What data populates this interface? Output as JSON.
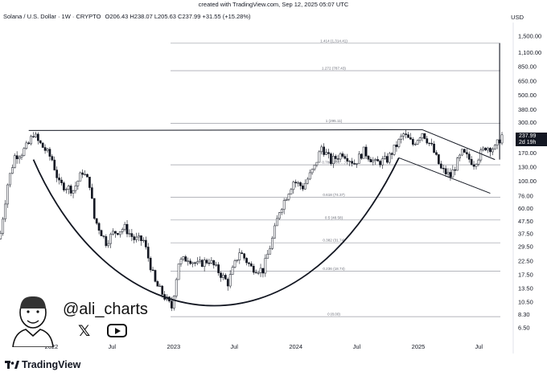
{
  "caption": "created with TradingView.com, Sep 12, 2025 05:07 UTC",
  "header": {
    "symbol": "Solana / U.S. Dollar · 1W · CRYPTO",
    "ohlc": "O206.43  H238.07  L205.63  C237.99  +31.55 (+15.28%)"
  },
  "currency": "USD",
  "watermark": {
    "handle": "@ali_charts",
    "x_icon": "x-logo-icon",
    "video_icon": "play-button-icon"
  },
  "brand": "TradingView",
  "price_tag": {
    "price": "237.99",
    "countdown": "2d 19h"
  },
  "colors": {
    "line": "#131722",
    "grid": "#9b9ea6",
    "candle_up": "#ffffff",
    "candle_down": "#131722"
  },
  "chart_data": {
    "type": "candlestick",
    "y_scale": "log",
    "y_axis_labels": [
      "1,500.00",
      "1,100.00",
      "850.00",
      "650.00",
      "500.00",
      "380.00",
      "300.00",
      "237.99",
      "170.00",
      "130.00",
      "100.00",
      "76.00",
      "60.00",
      "47.50",
      "37.50",
      "29.50",
      "22.50",
      "17.50",
      "13.50",
      "10.50",
      "8.30",
      "6.50"
    ],
    "y_ticks": [
      1500,
      1100,
      850,
      650,
      500,
      380,
      300,
      170,
      130,
      100,
      76,
      60,
      47.5,
      37.5,
      29.5,
      22.5,
      17.5,
      13.5,
      10.5,
      8.3,
      6.5
    ],
    "x_axis_labels": [
      {
        "label": "2022",
        "date": "2022-01-01"
      },
      {
        "label": "Jul",
        "date": "2022-07-01"
      },
      {
        "label": "2023",
        "date": "2023-01-01"
      },
      {
        "label": "Jul",
        "date": "2023-07-01"
      },
      {
        "label": "2024",
        "date": "2024-01-01"
      },
      {
        "label": "Jul",
        "date": "2024-07-01"
      },
      {
        "label": "2025",
        "date": "2025-01-01"
      },
      {
        "label": "Jul",
        "date": "2025-07-01"
      }
    ],
    "fib_levels": [
      {
        "label": "1.414 (1,314.41)",
        "price": 1314.41
      },
      {
        "label": "1.272 (787.43)",
        "price": 787.43
      },
      {
        "label": "1 (295.11)",
        "price": 295.11
      },
      {
        "label": "0.786 (136.…)",
        "price": 136
      },
      {
        "label": "0.618 (74.37)",
        "price": 74.37
      },
      {
        "label": "0.5 (48.58)",
        "price": 48.58
      },
      {
        "label": "0.382 (31.74)",
        "price": 31.74
      },
      {
        "label": "0.236 (18.74)",
        "price": 18.74
      },
      {
        "label": "0 (8.00)",
        "price": 8.0
      }
    ],
    "weekly_closes": [
      {
        "date": "2021-08-02",
        "close": 38
      },
      {
        "date": "2021-08-23",
        "close": 95
      },
      {
        "date": "2021-09-13",
        "close": 160
      },
      {
        "date": "2021-10-04",
        "close": 170
      },
      {
        "date": "2021-10-25",
        "close": 200
      },
      {
        "date": "2021-11-08",
        "close": 245
      },
      {
        "date": "2021-11-22",
        "close": 210
      },
      {
        "date": "2021-12-13",
        "close": 180
      },
      {
        "date": "2022-01-03",
        "close": 150
      },
      {
        "date": "2022-01-24",
        "close": 95
      },
      {
        "date": "2022-02-14",
        "close": 90
      },
      {
        "date": "2022-03-07",
        "close": 85
      },
      {
        "date": "2022-04-04",
        "close": 120
      },
      {
        "date": "2022-04-25",
        "close": 95
      },
      {
        "date": "2022-05-09",
        "close": 50
      },
      {
        "date": "2022-06-13",
        "close": 32
      },
      {
        "date": "2022-07-04",
        "close": 38
      },
      {
        "date": "2022-08-08",
        "close": 42
      },
      {
        "date": "2022-09-05",
        "close": 34
      },
      {
        "date": "2022-10-03",
        "close": 33
      },
      {
        "date": "2022-11-07",
        "close": 15
      },
      {
        "date": "2022-12-26",
        "close": 9.5
      },
      {
        "date": "2023-01-16",
        "close": 22
      },
      {
        "date": "2023-02-13",
        "close": 24
      },
      {
        "date": "2023-03-13",
        "close": 21
      },
      {
        "date": "2023-04-17",
        "close": 23
      },
      {
        "date": "2023-06-12",
        "close": 15
      },
      {
        "date": "2023-07-17",
        "close": 27
      },
      {
        "date": "2023-08-21",
        "close": 20
      },
      {
        "date": "2023-09-25",
        "close": 19
      },
      {
        "date": "2023-10-23",
        "close": 34
      },
      {
        "date": "2023-11-13",
        "close": 58
      },
      {
        "date": "2023-12-25",
        "close": 100
      },
      {
        "date": "2024-01-22",
        "close": 90
      },
      {
        "date": "2024-02-26",
        "close": 130
      },
      {
        "date": "2024-03-18",
        "close": 190
      },
      {
        "date": "2024-04-15",
        "close": 145
      },
      {
        "date": "2024-05-20",
        "close": 170
      },
      {
        "date": "2024-06-24",
        "close": 140
      },
      {
        "date": "2024-07-22",
        "close": 175
      },
      {
        "date": "2024-08-26",
        "close": 140
      },
      {
        "date": "2024-09-30",
        "close": 150
      },
      {
        "date": "2024-11-18",
        "close": 240
      },
      {
        "date": "2024-12-16",
        "close": 200
      },
      {
        "date": "2025-01-13",
        "close": 250
      },
      {
        "date": "2025-02-10",
        "close": 190
      },
      {
        "date": "2025-03-10",
        "close": 125
      },
      {
        "date": "2025-04-07",
        "close": 110
      },
      {
        "date": "2025-05-12",
        "close": 170
      },
      {
        "date": "2025-06-16",
        "close": 140
      },
      {
        "date": "2025-07-21",
        "close": 190
      },
      {
        "date": "2025-08-18",
        "close": 185
      },
      {
        "date": "2025-09-08",
        "close": 237.99
      }
    ]
  }
}
